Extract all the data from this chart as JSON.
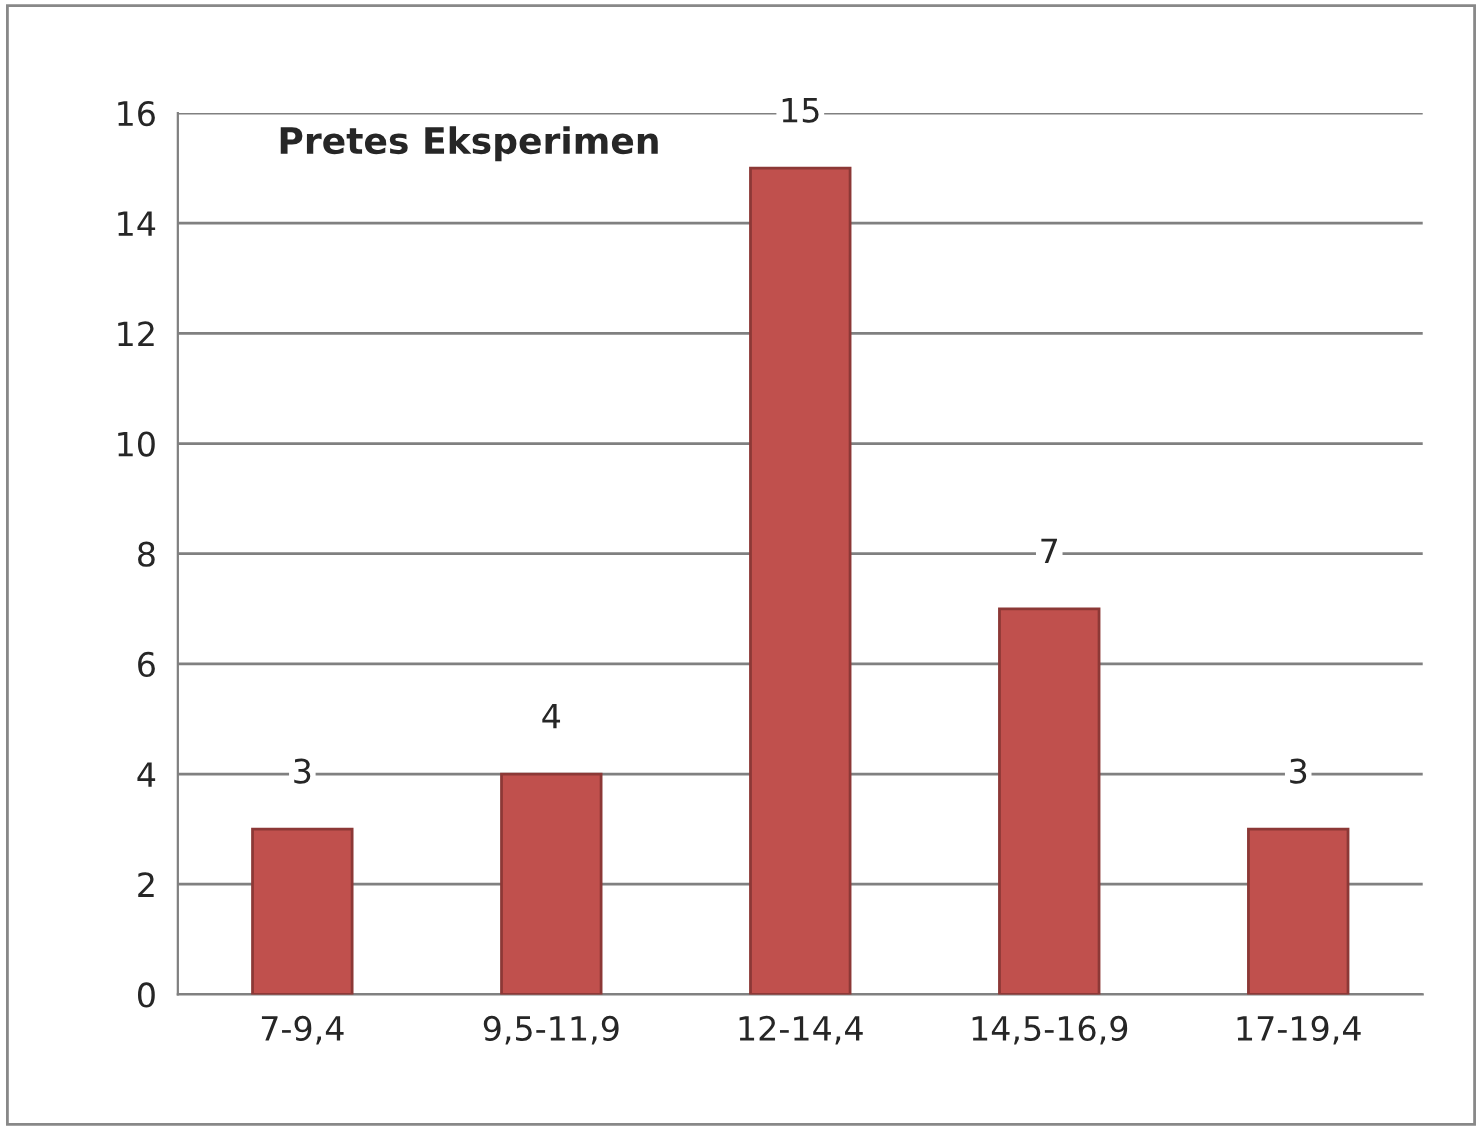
{
  "chart_data": {
    "type": "bar",
    "title": "Pretes Eksperimen",
    "categories": [
      "7-9,4",
      "9,5-11,9",
      "12-14,4",
      "14,5-16,9",
      "17-19,4"
    ],
    "values": [
      3,
      4,
      15,
      7,
      3
    ],
    "color": "#c0504d",
    "ylim": [
      0,
      16
    ],
    "yticks": [
      0,
      2,
      4,
      6,
      8,
      10,
      12,
      14,
      16
    ],
    "grid": "y",
    "data_labels": true
  }
}
